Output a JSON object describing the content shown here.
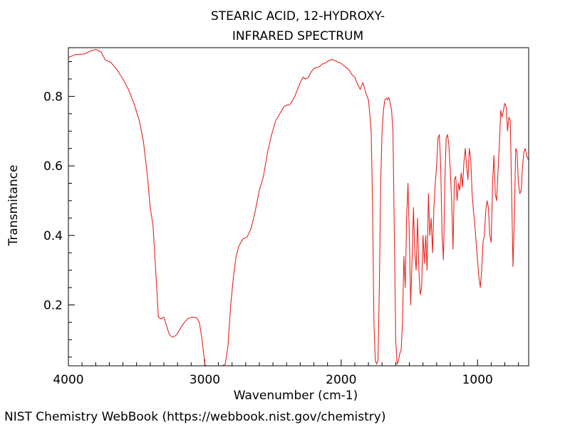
{
  "title_line1": "STEARIC ACID, 12-HYDROXY-",
  "title_line2": "INFRARED SPECTRUM",
  "credit": "NIST Chemistry WebBook (https://webbook.nist.gov/chemistry)",
  "chart_data": {
    "type": "line",
    "xlabel": "Wavenumber (cm-1)",
    "ylabel": "Transmitance",
    "xlim": [
      4000,
      625
    ],
    "ylim": [
      0.025,
      0.94
    ],
    "x_reversed": true,
    "x_ticks": [
      4000,
      3000,
      2000,
      1000
    ],
    "y_ticks": [
      0.2,
      0.4,
      0.6,
      0.8
    ],
    "x_minor_step": 100,
    "y_minor_step": 0.05,
    "grid": false,
    "series": [
      {
        "color": "#e8231e",
        "points": [
          [
            4000,
            0.912
          ],
          [
            3950,
            0.92
          ],
          [
            3880,
            0.922
          ],
          [
            3840,
            0.93
          ],
          [
            3800,
            0.935
          ],
          [
            3760,
            0.928
          ],
          [
            3730,
            0.905
          ],
          [
            3690,
            0.898
          ],
          [
            3650,
            0.88
          ],
          [
            3600,
            0.85
          ],
          [
            3560,
            0.82
          ],
          [
            3520,
            0.78
          ],
          [
            3480,
            0.73
          ],
          [
            3450,
            0.67
          ],
          [
            3420,
            0.57
          ],
          [
            3400,
            0.48
          ],
          [
            3380,
            0.43
          ],
          [
            3360,
            0.3
          ],
          [
            3340,
            0.165
          ],
          [
            3320,
            0.16
          ],
          [
            3300,
            0.165
          ],
          [
            3280,
            0.14
          ],
          [
            3260,
            0.115
          ],
          [
            3240,
            0.108
          ],
          [
            3220,
            0.11
          ],
          [
            3200,
            0.118
          ],
          [
            3180,
            0.132
          ],
          [
            3150,
            0.15
          ],
          [
            3120,
            0.162
          ],
          [
            3090,
            0.165
          ],
          [
            3060,
            0.163
          ],
          [
            3040,
            0.15
          ],
          [
            3020,
            0.1
          ],
          [
            3000,
            0.03
          ],
          [
            2990,
            0.025
          ],
          [
            2960,
            0.025
          ],
          [
            2930,
            0.025
          ],
          [
            2900,
            0.025
          ],
          [
            2870,
            0.025
          ],
          [
            2850,
            0.03
          ],
          [
            2830,
            0.08
          ],
          [
            2810,
            0.2
          ],
          [
            2790,
            0.28
          ],
          [
            2770,
            0.34
          ],
          [
            2750,
            0.37
          ],
          [
            2720,
            0.39
          ],
          [
            2690,
            0.395
          ],
          [
            2660,
            0.42
          ],
          [
            2630,
            0.47
          ],
          [
            2600,
            0.53
          ],
          [
            2570,
            0.57
          ],
          [
            2540,
            0.64
          ],
          [
            2510,
            0.69
          ],
          [
            2480,
            0.73
          ],
          [
            2450,
            0.75
          ],
          [
            2420,
            0.77
          ],
          [
            2400,
            0.775
          ],
          [
            2380,
            0.775
          ],
          [
            2360,
            0.785
          ],
          [
            2340,
            0.8
          ],
          [
            2320,
            0.82
          ],
          [
            2300,
            0.84
          ],
          [
            2280,
            0.855
          ],
          [
            2260,
            0.85
          ],
          [
            2240,
            0.855
          ],
          [
            2220,
            0.87
          ],
          [
            2200,
            0.88
          ],
          [
            2180,
            0.883
          ],
          [
            2160,
            0.885
          ],
          [
            2140,
            0.893
          ],
          [
            2120,
            0.895
          ],
          [
            2100,
            0.9
          ],
          [
            2080,
            0.905
          ],
          [
            2060,
            0.905
          ],
          [
            2040,
            0.902
          ],
          [
            2020,
            0.898
          ],
          [
            2000,
            0.895
          ],
          [
            1980,
            0.888
          ],
          [
            1960,
            0.882
          ],
          [
            1940,
            0.875
          ],
          [
            1920,
            0.862
          ],
          [
            1900,
            0.855
          ],
          [
            1880,
            0.835
          ],
          [
            1860,
            0.82
          ],
          [
            1840,
            0.84
          ],
          [
            1820,
            0.81
          ],
          [
            1800,
            0.79
          ],
          [
            1790,
            0.75
          ],
          [
            1780,
            0.7
          ],
          [
            1770,
            0.5
          ],
          [
            1760,
            0.15
          ],
          [
            1750,
            0.04
          ],
          [
            1740,
            0.03
          ],
          [
            1730,
            0.04
          ],
          [
            1720,
            0.25
          ],
          [
            1710,
            0.55
          ],
          [
            1700,
            0.7
          ],
          [
            1690,
            0.76
          ],
          [
            1680,
            0.79
          ],
          [
            1670,
            0.795
          ],
          [
            1660,
            0.79
          ],
          [
            1650,
            0.797
          ],
          [
            1640,
            0.78
          ],
          [
            1630,
            0.76
          ],
          [
            1620,
            0.7
          ],
          [
            1610,
            0.4
          ],
          [
            1600,
            0.1
          ],
          [
            1590,
            0.03
          ],
          [
            1580,
            0.04
          ],
          [
            1570,
            0.06
          ],
          [
            1560,
            0.07
          ],
          [
            1550,
            0.15
          ],
          [
            1540,
            0.34
          ],
          [
            1530,
            0.25
          ],
          [
            1520,
            0.45
          ],
          [
            1510,
            0.55
          ],
          [
            1500,
            0.4
          ],
          [
            1490,
            0.2
          ],
          [
            1480,
            0.33
          ],
          [
            1470,
            0.48
          ],
          [
            1460,
            0.35
          ],
          [
            1450,
            0.3
          ],
          [
            1440,
            0.45
          ],
          [
            1430,
            0.3
          ],
          [
            1420,
            0.23
          ],
          [
            1410,
            0.25
          ],
          [
            1400,
            0.4
          ],
          [
            1390,
            0.32
          ],
          [
            1380,
            0.4
          ],
          [
            1370,
            0.3
          ],
          [
            1360,
            0.52
          ],
          [
            1350,
            0.4
          ],
          [
            1340,
            0.45
          ],
          [
            1330,
            0.35
          ],
          [
            1320,
            0.48
          ],
          [
            1310,
            0.55
          ],
          [
            1300,
            0.6
          ],
          [
            1290,
            0.68
          ],
          [
            1280,
            0.69
          ],
          [
            1270,
            0.6
          ],
          [
            1260,
            0.4
          ],
          [
            1250,
            0.33
          ],
          [
            1240,
            0.55
          ],
          [
            1230,
            0.68
          ],
          [
            1220,
            0.69
          ],
          [
            1210,
            0.66
          ],
          [
            1200,
            0.59
          ],
          [
            1190,
            0.5
          ],
          [
            1180,
            0.36
          ],
          [
            1170,
            0.56
          ],
          [
            1160,
            0.57
          ],
          [
            1150,
            0.5
          ],
          [
            1140,
            0.55
          ],
          [
            1130,
            0.53
          ],
          [
            1120,
            0.58
          ],
          [
            1110,
            0.54
          ],
          [
            1100,
            0.61
          ],
          [
            1090,
            0.65
          ],
          [
            1080,
            0.6
          ],
          [
            1070,
            0.56
          ],
          [
            1060,
            0.65
          ],
          [
            1050,
            0.62
          ],
          [
            1040,
            0.52
          ],
          [
            1030,
            0.47
          ],
          [
            1020,
            0.43
          ],
          [
            1010,
            0.38
          ],
          [
            1000,
            0.33
          ],
          [
            990,
            0.28
          ],
          [
            980,
            0.25
          ],
          [
            970,
            0.3
          ],
          [
            960,
            0.38
          ],
          [
            950,
            0.4
          ],
          [
            940,
            0.47
          ],
          [
            930,
            0.5
          ],
          [
            920,
            0.48
          ],
          [
            910,
            0.4
          ],
          [
            900,
            0.38
          ],
          [
            890,
            0.55
          ],
          [
            880,
            0.63
          ],
          [
            870,
            0.52
          ],
          [
            860,
            0.5
          ],
          [
            850,
            0.58
          ],
          [
            840,
            0.66
          ],
          [
            830,
            0.76
          ],
          [
            820,
            0.74
          ],
          [
            810,
            0.76
          ],
          [
            800,
            0.78
          ],
          [
            790,
            0.77
          ],
          [
            780,
            0.7
          ],
          [
            770,
            0.74
          ],
          [
            760,
            0.73
          ],
          [
            750,
            0.52
          ],
          [
            740,
            0.31
          ],
          [
            730,
            0.45
          ],
          [
            720,
            0.65
          ],
          [
            710,
            0.64
          ],
          [
            700,
            0.55
          ],
          [
            690,
            0.52
          ],
          [
            680,
            0.53
          ],
          [
            670,
            0.6
          ],
          [
            660,
            0.64
          ],
          [
            650,
            0.65
          ],
          [
            640,
            0.63
          ],
          [
            630,
            0.62
          ],
          [
            625,
            0.618
          ]
        ]
      }
    ]
  }
}
